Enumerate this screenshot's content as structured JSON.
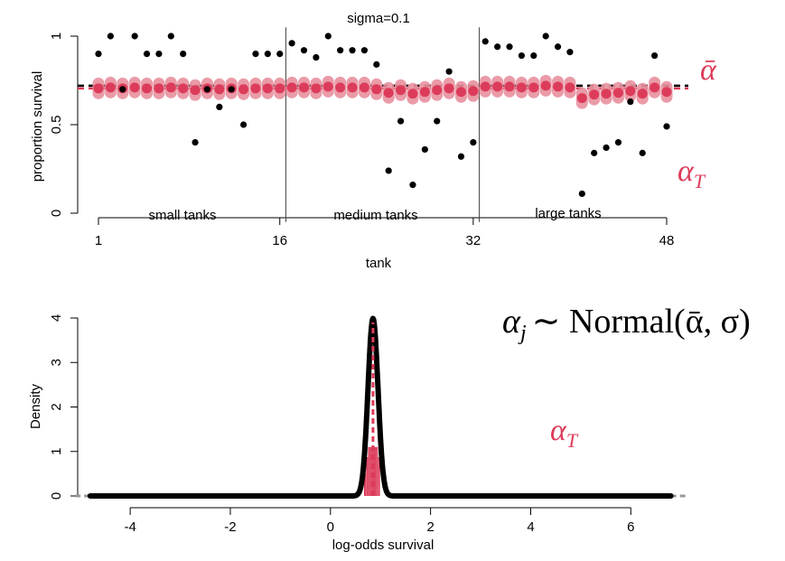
{
  "colors": {
    "accent": "#dc3c5a",
    "accent_light": "#e8909f",
    "mean_line": "#000000",
    "points": "#000000"
  },
  "chart_data": [
    {
      "type": "scatter",
      "title": "sigma=0.1",
      "xlabel": "tank",
      "ylabel": "proportion survival",
      "xlim": [
        1,
        48
      ],
      "ylim": [
        0,
        1
      ],
      "x_ticks": [
        "1",
        "16",
        "32",
        "48"
      ],
      "y_ticks": [
        "0",
        "0.5",
        "1"
      ],
      "region_labels": [
        "small tanks",
        "medium tanks",
        "large tanks"
      ],
      "region_dividers": [
        16.5,
        32.5
      ],
      "alpha_bar_label": "ᾱ",
      "alpha_T_label": "α",
      "alpha_T_sub": "T",
      "alpha_bar_value": 0.72,
      "true_alpha_value": 0.705,
      "observed": [
        0.9,
        1.0,
        0.7,
        1.0,
        0.9,
        0.9,
        1.0,
        0.9,
        0.4,
        0.7,
        0.6,
        0.7,
        0.5,
        0.9,
        0.9,
        0.9,
        0.96,
        0.92,
        0.88,
        1.0,
        0.92,
        0.92,
        0.92,
        0.84,
        0.24,
        0.52,
        0.16,
        0.36,
        0.52,
        0.8,
        0.32,
        0.4,
        0.97,
        0.94,
        0.94,
        0.89,
        0.89,
        1.0,
        0.94,
        0.91,
        0.11,
        0.34,
        0.37,
        0.4,
        0.63,
        0.34,
        0.89,
        0.49
      ],
      "estimates": [
        0.705,
        0.71,
        0.705,
        0.71,
        0.705,
        0.705,
        0.71,
        0.705,
        0.695,
        0.705,
        0.7,
        0.705,
        0.7,
        0.705,
        0.705,
        0.705,
        0.71,
        0.71,
        0.705,
        0.715,
        0.71,
        0.71,
        0.71,
        0.7,
        0.68,
        0.695,
        0.675,
        0.685,
        0.695,
        0.705,
        0.685,
        0.69,
        0.715,
        0.715,
        0.715,
        0.71,
        0.71,
        0.72,
        0.715,
        0.71,
        0.65,
        0.67,
        0.675,
        0.68,
        0.69,
        0.675,
        0.71,
        0.685
      ]
    },
    {
      "type": "line",
      "xlabel": "log-odds survival",
      "ylabel": "Density",
      "xlim": [
        -4.8,
        6.8
      ],
      "ylim": [
        0,
        4
      ],
      "x_ticks": [
        "-4",
        "-2",
        "0",
        "2",
        "4",
        "6"
      ],
      "y_ticks": [
        "0",
        "1",
        "2",
        "3",
        "4"
      ],
      "mean": 0.85,
      "sd": 0.1,
      "true_mean": 0.85,
      "formula_lhs": "α",
      "formula_sub": "j",
      "formula_rhs": "∼ Normal(ᾱ, σ)",
      "alpha_T_label": "α",
      "alpha_T_sub": "T"
    }
  ]
}
